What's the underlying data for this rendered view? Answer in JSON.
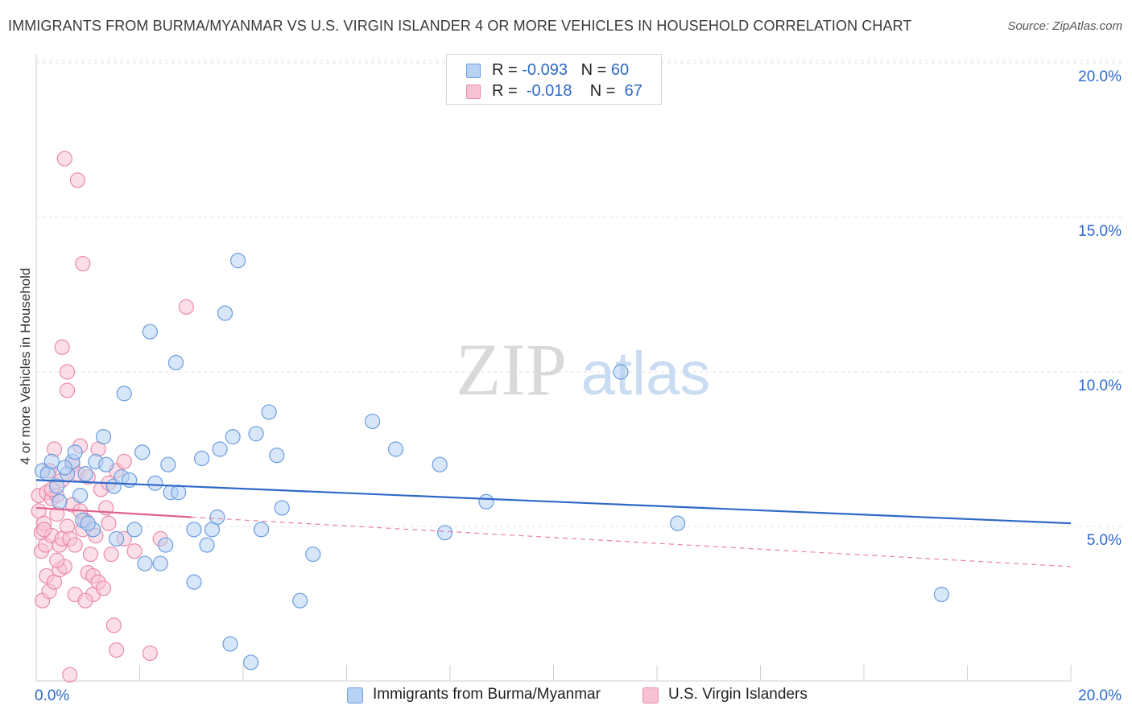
{
  "title": "IMMIGRANTS FROM BURMA/MYANMAR VS U.S. VIRGIN ISLANDER 4 OR MORE VEHICLES IN HOUSEHOLD CORRELATION CHART",
  "source": "Source: ZipAtlas.com",
  "watermark": {
    "zip": "ZIP",
    "atlas": "atlas"
  },
  "colors": {
    "blue": "#2e69c9",
    "blue_fill": "#b7d2f3",
    "blue_stroke": "#6b9de0",
    "pink": "#e06090",
    "pink_fill": "#f7c3d4",
    "pink_stroke": "#e98bab",
    "grid": "#e0e0e0",
    "tick_label": "#2e69c9"
  },
  "legend": {
    "rows": [
      {
        "r_label": "R = ",
        "r_value": "-0.093",
        "n_label": "N = ",
        "n_value": "60"
      },
      {
        "r_label": "R = ",
        "r_value": "-0.018",
        "n_label": "N = ",
        "n_value": "67"
      }
    ]
  },
  "chart_data": {
    "type": "scatter",
    "title": "IMMIGRANTS FROM BURMA/MYANMAR VS U.S. VIRGIN ISLANDER 4 OR MORE VEHICLES IN HOUSEHOLD CORRELATION CHART",
    "xlabel": "",
    "ylabel": "4 or more Vehicles in Household",
    "xlim": [
      0,
      20
    ],
    "ylim": [
      0,
      20.7
    ],
    "x_tick_labels": [
      "0.0%",
      "20.0%"
    ],
    "y_tick_labels": [
      "5.0%",
      "10.0%",
      "15.0%",
      "20.0%"
    ],
    "y_ticks": [
      5,
      10,
      15,
      20
    ],
    "grid": true,
    "series": [
      {
        "name": "Immigrants from Burma/Myanmar",
        "color": "blue",
        "trend": {
          "x": [
            0,
            20
          ],
          "y": [
            6.5,
            5.1
          ],
          "dashed_x": null
        },
        "points": [
          [
            0.12,
            6.8
          ],
          [
            0.22,
            6.7
          ],
          [
            0.3,
            7.1
          ],
          [
            0.4,
            6.3
          ],
          [
            0.45,
            5.8
          ],
          [
            0.6,
            6.7
          ],
          [
            0.7,
            7.1
          ],
          [
            0.75,
            7.4
          ],
          [
            0.9,
            5.2
          ],
          [
            0.95,
            6.7
          ],
          [
            1.1,
            4.9
          ],
          [
            1.15,
            7.1
          ],
          [
            1.3,
            7.9
          ],
          [
            1.35,
            7.0
          ],
          [
            1.5,
            6.3
          ],
          [
            1.55,
            4.6
          ],
          [
            1.65,
            6.6
          ],
          [
            1.7,
            9.3
          ],
          [
            1.8,
            6.5
          ],
          [
            1.9,
            4.9
          ],
          [
            2.05,
            7.4
          ],
          [
            2.1,
            3.8
          ],
          [
            2.2,
            11.3
          ],
          [
            2.3,
            6.4
          ],
          [
            2.4,
            3.8
          ],
          [
            2.5,
            4.4
          ],
          [
            2.55,
            7.0
          ],
          [
            2.6,
            6.1
          ],
          [
            2.75,
            6.1
          ],
          [
            2.7,
            10.3
          ],
          [
            3.05,
            4.9
          ],
          [
            3.05,
            3.2
          ],
          [
            3.2,
            7.2
          ],
          [
            3.3,
            4.4
          ],
          [
            3.4,
            4.9
          ],
          [
            3.5,
            5.3
          ],
          [
            3.55,
            7.5
          ],
          [
            3.65,
            11.9
          ],
          [
            3.75,
            1.2
          ],
          [
            3.8,
            7.9
          ],
          [
            3.9,
            13.6
          ],
          [
            4.15,
            0.6
          ],
          [
            4.25,
            8.0
          ],
          [
            4.35,
            4.9
          ],
          [
            4.5,
            8.7
          ],
          [
            4.65,
            7.3
          ],
          [
            4.75,
            5.6
          ],
          [
            5.1,
            2.6
          ],
          [
            5.35,
            4.1
          ],
          [
            6.5,
            8.4
          ],
          [
            6.95,
            7.5
          ],
          [
            7.8,
            7.0
          ],
          [
            7.9,
            4.8
          ],
          [
            8.7,
            5.8
          ],
          [
            11.3,
            10.0
          ],
          [
            12.4,
            5.1
          ],
          [
            17.5,
            2.8
          ],
          [
            0.55,
            6.9
          ],
          [
            1.0,
            5.1
          ],
          [
            0.85,
            6.0
          ]
        ]
      },
      {
        "name": "U.S. Virgin Islanders",
        "color": "pink",
        "trend": {
          "x": [
            0,
            3.0
          ],
          "y": [
            5.6,
            5.3
          ],
          "dashed_x": [
            3.0,
            20
          ],
          "dashed_y": [
            5.3,
            3.7
          ]
        },
        "points": [
          [
            0.05,
            6.0
          ],
          [
            0.05,
            5.5
          ],
          [
            0.1,
            4.8
          ],
          [
            0.1,
            4.2
          ],
          [
            0.12,
            2.6
          ],
          [
            0.15,
            5.1
          ],
          [
            0.18,
            4.4
          ],
          [
            0.2,
            6.1
          ],
          [
            0.2,
            3.4
          ],
          [
            0.25,
            2.9
          ],
          [
            0.25,
            6.8
          ],
          [
            0.3,
            5.9
          ],
          [
            0.3,
            4.7
          ],
          [
            0.35,
            7.5
          ],
          [
            0.35,
            3.2
          ],
          [
            0.4,
            6.0
          ],
          [
            0.4,
            5.4
          ],
          [
            0.45,
            4.4
          ],
          [
            0.45,
            3.6
          ],
          [
            0.5,
            6.5
          ],
          [
            0.5,
            10.8
          ],
          [
            0.5,
            4.6
          ],
          [
            0.55,
            16.9
          ],
          [
            0.6,
            5.0
          ],
          [
            0.6,
            10.0
          ],
          [
            0.6,
            9.4
          ],
          [
            0.65,
            4.6
          ],
          [
            0.7,
            7.0
          ],
          [
            0.7,
            5.7
          ],
          [
            0.75,
            4.4
          ],
          [
            0.75,
            2.8
          ],
          [
            0.8,
            16.2
          ],
          [
            0.8,
            6.7
          ],
          [
            0.85,
            7.6
          ],
          [
            0.9,
            13.5
          ],
          [
            0.9,
            4.9
          ],
          [
            0.95,
            5.2
          ],
          [
            1.0,
            3.5
          ],
          [
            1.0,
            6.6
          ],
          [
            1.05,
            4.1
          ],
          [
            1.1,
            2.8
          ],
          [
            1.1,
            3.4
          ],
          [
            1.15,
            4.7
          ],
          [
            1.2,
            3.2
          ],
          [
            1.25,
            6.2
          ],
          [
            1.3,
            3.0
          ],
          [
            1.35,
            5.6
          ],
          [
            1.4,
            6.4
          ],
          [
            1.4,
            5.1
          ],
          [
            1.45,
            4.1
          ],
          [
            1.5,
            1.8
          ],
          [
            1.55,
            1.0
          ],
          [
            1.55,
            6.8
          ],
          [
            1.7,
            4.6
          ],
          [
            1.7,
            7.1
          ],
          [
            1.9,
            4.2
          ],
          [
            2.2,
            0.9
          ],
          [
            2.4,
            4.6
          ],
          [
            2.9,
            12.1
          ],
          [
            0.65,
            0.2
          ],
          [
            0.3,
            6.2
          ],
          [
            0.55,
            3.7
          ],
          [
            0.85,
            5.5
          ],
          [
            0.15,
            4.9
          ],
          [
            1.2,
            7.5
          ],
          [
            0.95,
            2.6
          ],
          [
            0.4,
            3.9
          ]
        ]
      }
    ]
  },
  "bottom_legend": [
    {
      "label": "Immigrants from Burma/Myanmar",
      "color": "blue"
    },
    {
      "label": "U.S. Virgin Islanders",
      "color": "pink"
    }
  ]
}
